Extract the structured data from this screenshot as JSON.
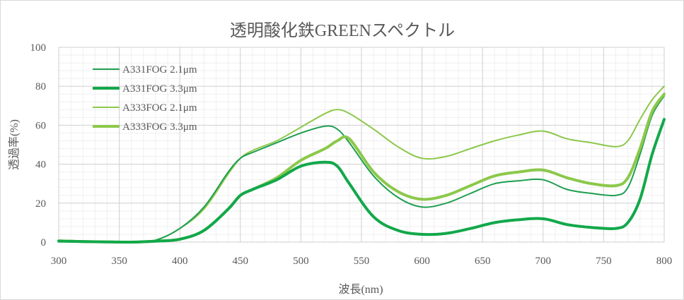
{
  "chart_data": {
    "type": "line",
    "title": "透明酸化鉄GREENスペクトル",
    "xlabel": "波長(nm)",
    "ylabel": "透過率(%)",
    "xlim": [
      300,
      800
    ],
    "ylim": [
      0,
      100
    ],
    "x_ticks": [
      300,
      350,
      400,
      450,
      500,
      550,
      600,
      650,
      700,
      750,
      800
    ],
    "y_ticks": [
      0,
      20,
      40,
      60,
      80,
      100
    ],
    "x_tick_labels": [
      "300",
      "350",
      "400",
      "450",
      "500",
      "550",
      "600",
      "650",
      "700",
      "750",
      "800"
    ],
    "y_tick_labels": [
      "0",
      "20",
      "40",
      "60",
      "80",
      "100"
    ],
    "grid": true,
    "legend_position": "top-left",
    "x": [
      300,
      320,
      340,
      360,
      380,
      400,
      420,
      440,
      450,
      460,
      480,
      500,
      520,
      530,
      540,
      560,
      580,
      600,
      620,
      640,
      660,
      680,
      700,
      720,
      740,
      760,
      770,
      780,
      790,
      800
    ],
    "series": [
      {
        "name": "A331FOG 2.1μm",
        "color": "#1e9e50",
        "width": 2,
        "values": [
          1,
          0.6,
          0.2,
          0,
          1,
          7,
          18,
          36,
          43,
          46,
          51,
          56,
          59.5,
          58,
          51,
          34,
          23,
          18,
          20,
          25,
          30,
          31.5,
          32,
          27,
          25,
          24,
          28,
          45,
          65,
          75
        ]
      },
      {
        "name": "A331FOG 3.3μm",
        "color": "#12a84a",
        "width": 4,
        "values": [
          0.5,
          0.3,
          0.1,
          0,
          0.5,
          1.5,
          6,
          17,
          24,
          27,
          32,
          39,
          41,
          39,
          30,
          13,
          6,
          4,
          4.5,
          7,
          10,
          11.5,
          12,
          9,
          7.5,
          7,
          10,
          22,
          45,
          63
        ]
      },
      {
        "name": "A333FOG 2.1μm",
        "color": "#8cc84b",
        "width": 2,
        "values": [
          0.8,
          0.4,
          0.1,
          0,
          1,
          7,
          17,
          35,
          43,
          47,
          52,
          59,
          66,
          68,
          66,
          58,
          49,
          43,
          44,
          48,
          52,
          55,
          57,
          53,
          51,
          49,
          52,
          63,
          73,
          80
        ]
      },
      {
        "name": "A333FOG 3.3μm",
        "color": "#8cc84b",
        "width": 4,
        "values": [
          0.6,
          0.3,
          0.1,
          0,
          0.5,
          1.5,
          6,
          17,
          24,
          27,
          33,
          42,
          48,
          52,
          53,
          36,
          26,
          22,
          24,
          29,
          34,
          36,
          37,
          33,
          30,
          29,
          33,
          48,
          67,
          76
        ]
      }
    ]
  }
}
